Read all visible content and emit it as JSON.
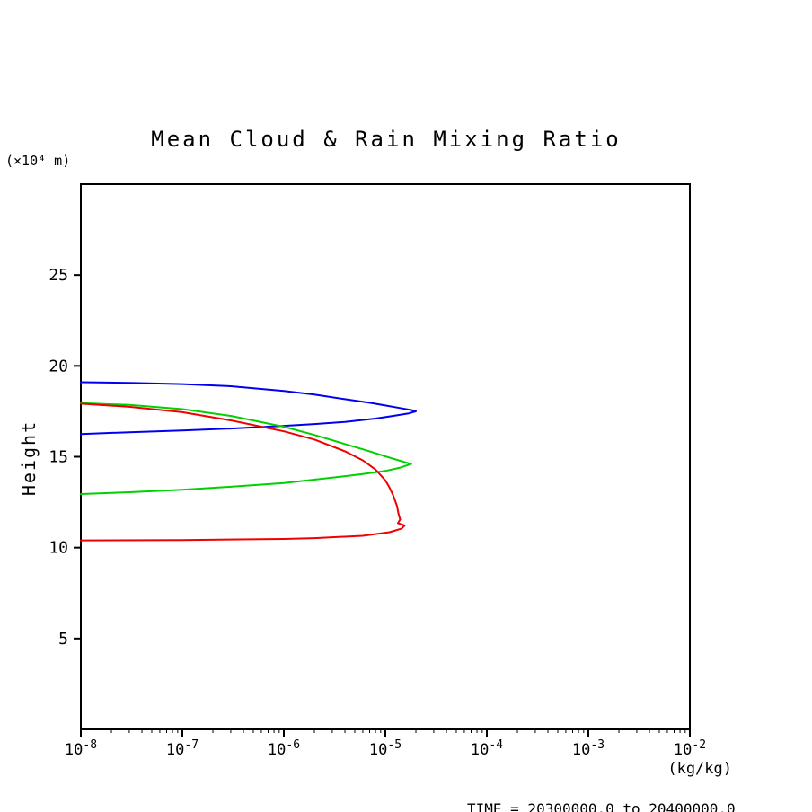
{
  "chart_data": {
    "type": "line",
    "title": "Mean Cloud & Rain Mixing Ratio",
    "ylabel": "Height",
    "y_axis_units": "(×10⁴ m)",
    "x_axis_units": "(kg/kg)",
    "footer": "TIME = 20300000.0 to 20400000.0",
    "x_scale": "log",
    "x_log_min_exp": -8,
    "x_log_max_exp": -2,
    "x_tick_exponents": [
      -8,
      -7,
      -6,
      -5,
      -4,
      -3,
      -2
    ],
    "ylim": [
      0,
      30
    ],
    "y_ticks": [
      5,
      10,
      15,
      20,
      25
    ],
    "grid": false,
    "legend": "none",
    "axis_color": "#000000",
    "background": "#ffffff",
    "series": [
      {
        "name": "blue-curve",
        "color": "#0000f0",
        "points": [
          [
            1e-08,
            19.1
          ],
          [
            3e-08,
            19.07
          ],
          [
            1e-07,
            19.0
          ],
          [
            3e-07,
            18.88
          ],
          [
            1e-06,
            18.62
          ],
          [
            2e-06,
            18.42
          ],
          [
            4e-06,
            18.17
          ],
          [
            7e-06,
            17.97
          ],
          [
            1e-05,
            17.82
          ],
          [
            1.4e-05,
            17.68
          ],
          [
            1.8e-05,
            17.57
          ],
          [
            2e-05,
            17.5
          ],
          [
            1.7e-05,
            17.38
          ],
          [
            1.2e-05,
            17.25
          ],
          [
            8e-06,
            17.1
          ],
          [
            4e-06,
            16.92
          ],
          [
            2e-06,
            16.8
          ],
          [
            1e-06,
            16.7
          ],
          [
            3e-07,
            16.55
          ],
          [
            1e-07,
            16.45
          ],
          [
            3e-08,
            16.35
          ],
          [
            1e-08,
            16.25
          ]
        ]
      },
      {
        "name": "green-curve",
        "color": "#00d000",
        "points": [
          [
            1e-08,
            17.95
          ],
          [
            3e-08,
            17.85
          ],
          [
            1e-07,
            17.62
          ],
          [
            3e-07,
            17.25
          ],
          [
            1e-06,
            16.65
          ],
          [
            2e-06,
            16.2
          ],
          [
            4e-06,
            15.7
          ],
          [
            7e-06,
            15.3
          ],
          [
            1e-05,
            15.02
          ],
          [
            1.4e-05,
            14.78
          ],
          [
            1.8e-05,
            14.6
          ],
          [
            1.4e-05,
            14.4
          ],
          [
            1e-05,
            14.22
          ],
          [
            6e-06,
            14.05
          ],
          [
            3e-06,
            13.85
          ],
          [
            1e-06,
            13.55
          ],
          [
            3e-07,
            13.35
          ],
          [
            1e-07,
            13.18
          ],
          [
            3e-08,
            13.05
          ],
          [
            1e-08,
            12.95
          ]
        ]
      },
      {
        "name": "red-curve",
        "color": "#f00000",
        "points": [
          [
            1e-08,
            17.92
          ],
          [
            3e-08,
            17.75
          ],
          [
            1e-07,
            17.45
          ],
          [
            3e-07,
            17.0
          ],
          [
            1e-06,
            16.4
          ],
          [
            2e-06,
            15.95
          ],
          [
            4e-06,
            15.3
          ],
          [
            6e-06,
            14.8
          ],
          [
            8e-06,
            14.3
          ],
          [
            1e-05,
            13.7
          ],
          [
            1.1e-05,
            13.3
          ],
          [
            1.2e-05,
            12.85
          ],
          [
            1.3e-05,
            12.3
          ],
          [
            1.35e-05,
            11.85
          ],
          [
            1.4e-05,
            11.55
          ],
          [
            1.33e-05,
            11.35
          ],
          [
            1.55e-05,
            11.22
          ],
          [
            1.45e-05,
            11.05
          ],
          [
            1.1e-05,
            10.85
          ],
          [
            6e-06,
            10.65
          ],
          [
            2e-06,
            10.52
          ],
          [
            1e-06,
            10.48
          ],
          [
            1e-07,
            10.42
          ],
          [
            1e-08,
            10.4
          ]
        ]
      }
    ]
  }
}
